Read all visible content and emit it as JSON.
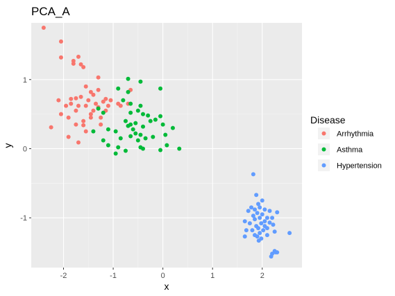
{
  "chart_data": {
    "type": "scatter",
    "title": "PCA_A",
    "xlabel": "x",
    "ylabel": "y",
    "xlim": [
      -2.65,
      2.8
    ],
    "ylim": [
      -1.72,
      1.82
    ],
    "x_ticks": [
      -2,
      -1,
      0,
      1,
      2
    ],
    "y_ticks": [
      -1,
      0,
      1
    ],
    "x_tick_labels": [
      "-2",
      "-1",
      "0",
      "1",
      "2"
    ],
    "y_tick_labels": [
      "-1",
      "0",
      "1"
    ],
    "grid": true,
    "legend": {
      "title": "Disease",
      "placement": "right"
    },
    "series": [
      {
        "name": "Arrhythmia",
        "color": "#F8766D",
        "points": [
          [
            -2.4,
            1.75
          ],
          [
            -2.05,
            1.55
          ],
          [
            -2.05,
            1.32
          ],
          [
            -1.7,
            1.33
          ],
          [
            -1.8,
            1.27
          ],
          [
            -1.65,
            1.22
          ],
          [
            -1.8,
            1.23
          ],
          [
            -1.6,
            1.18
          ],
          [
            -1.3,
            1.03
          ],
          [
            -1.55,
            0.9
          ],
          [
            -2.1,
            0.7
          ],
          [
            -1.85,
            0.72
          ],
          [
            -1.75,
            0.73
          ],
          [
            -1.65,
            0.75
          ],
          [
            -1.45,
            0.82
          ],
          [
            -1.3,
            0.85
          ],
          [
            -1.4,
            0.78
          ],
          [
            -1.55,
            0.62
          ],
          [
            -1.7,
            0.62
          ],
          [
            -1.85,
            0.65
          ],
          [
            -1.95,
            0.62
          ],
          [
            -2.05,
            0.5
          ],
          [
            -1.9,
            0.45
          ],
          [
            -1.75,
            0.35
          ],
          [
            -1.6,
            0.34
          ],
          [
            -1.45,
            0.45
          ],
          [
            -1.4,
            0.55
          ],
          [
            -1.3,
            0.6
          ],
          [
            -1.2,
            0.68
          ],
          [
            -1.1,
            0.62
          ],
          [
            -1.5,
            0.7
          ],
          [
            -1.35,
            0.65
          ],
          [
            -2.25,
            0.31
          ],
          [
            -1.9,
            0.17
          ],
          [
            -1.7,
            0.09
          ],
          [
            -1.6,
            0.4
          ],
          [
            -1.45,
            0.5
          ],
          [
            -1.75,
            0.55
          ],
          [
            -1.25,
            0.45
          ],
          [
            -1.15,
            0.55
          ],
          [
            -1.05,
            0.7
          ],
          [
            -0.7,
            0.65
          ],
          [
            -0.9,
            0.65
          ],
          [
            -0.65,
            0.85
          ],
          [
            -0.85,
            0.62
          ],
          [
            -1.25,
            0.35
          ],
          [
            -1.55,
            0.25
          ],
          [
            -1.15,
            0.72
          ]
        ]
      },
      {
        "name": "Asthma",
        "color": "#00BA38",
        "points": [
          [
            -0.7,
            1.01
          ],
          [
            -0.45,
            0.97
          ],
          [
            -0.9,
            0.87
          ],
          [
            -0.05,
            0.87
          ],
          [
            -0.7,
            0.82
          ],
          [
            -0.8,
            0.7
          ],
          [
            -0.65,
            0.65
          ],
          [
            -0.45,
            0.62
          ],
          [
            -1.3,
            0.58
          ],
          [
            -1.2,
            0.52
          ],
          [
            -0.65,
            0.52
          ],
          [
            -0.5,
            0.55
          ],
          [
            -0.4,
            0.5
          ],
          [
            -0.3,
            0.48
          ],
          [
            -0.05,
            0.47
          ],
          [
            -0.15,
            0.42
          ],
          [
            -0.25,
            0.4
          ],
          [
            -0.75,
            0.4
          ],
          [
            -0.55,
            0.37
          ],
          [
            -0.4,
            0.32
          ],
          [
            -0.7,
            0.33
          ],
          [
            -0.6,
            0.28
          ],
          [
            -1.4,
            0.25
          ],
          [
            -1.1,
            0.28
          ],
          [
            -0.95,
            0.25
          ],
          [
            -0.55,
            0.22
          ],
          [
            -0.45,
            0.2
          ],
          [
            -0.35,
            0.15
          ],
          [
            -0.5,
            0.12
          ],
          [
            0.0,
            0.35
          ],
          [
            0.2,
            0.3
          ],
          [
            0.05,
            0.2
          ],
          [
            -0.2,
            0.17
          ],
          [
            -0.65,
            0.18
          ],
          [
            -1.2,
            0.12
          ],
          [
            -1.1,
            0.05
          ],
          [
            -0.85,
            0.15
          ],
          [
            -0.9,
            0.02
          ],
          [
            -0.75,
            -0.03
          ],
          [
            -0.95,
            -0.07
          ],
          [
            -0.45,
            0.02
          ],
          [
            -0.4,
            0.0
          ],
          [
            -0.05,
            -0.02
          ],
          [
            0.08,
            0.05
          ],
          [
            0.33,
            0.0
          ],
          [
            -0.65,
            0.35
          ]
        ]
      },
      {
        "name": "Hypertension",
        "color": "#619CFF",
        "points": [
          [
            1.82,
            -0.37
          ],
          [
            1.88,
            -0.67
          ],
          [
            2.0,
            -0.75
          ],
          [
            1.92,
            -0.8
          ],
          [
            1.95,
            -0.85
          ],
          [
            1.78,
            -0.85
          ],
          [
            1.85,
            -0.88
          ],
          [
            2.05,
            -0.88
          ],
          [
            1.72,
            -0.9
          ],
          [
            2.15,
            -0.9
          ],
          [
            2.3,
            -0.92
          ],
          [
            1.9,
            -0.93
          ],
          [
            2.0,
            -0.95
          ],
          [
            1.82,
            -0.97
          ],
          [
            1.95,
            -1.0
          ],
          [
            2.1,
            -1.0
          ],
          [
            2.2,
            -1.0
          ],
          [
            1.85,
            -1.02
          ],
          [
            1.65,
            -1.05
          ],
          [
            2.05,
            -1.05
          ],
          [
            2.15,
            -1.07
          ],
          [
            1.75,
            -1.08
          ],
          [
            1.98,
            -1.08
          ],
          [
            2.22,
            -1.1
          ],
          [
            1.88,
            -1.12
          ],
          [
            2.05,
            -1.12
          ],
          [
            1.92,
            -1.15
          ],
          [
            2.1,
            -1.15
          ],
          [
            1.8,
            -1.18
          ],
          [
            2.02,
            -1.18
          ],
          [
            1.68,
            -1.18
          ],
          [
            2.25,
            -1.2
          ],
          [
            1.95,
            -1.22
          ],
          [
            2.55,
            -1.22
          ],
          [
            1.85,
            -1.25
          ],
          [
            2.1,
            -1.25
          ],
          [
            1.9,
            -1.27
          ],
          [
            1.65,
            -1.27
          ],
          [
            1.98,
            -1.3
          ],
          [
            1.93,
            -1.33
          ],
          [
            2.25,
            -1.48
          ],
          [
            2.3,
            -1.5
          ],
          [
            2.2,
            -1.52
          ],
          [
            2.18,
            -1.56
          ],
          [
            2.27,
            -1.5
          ]
        ]
      }
    ]
  }
}
